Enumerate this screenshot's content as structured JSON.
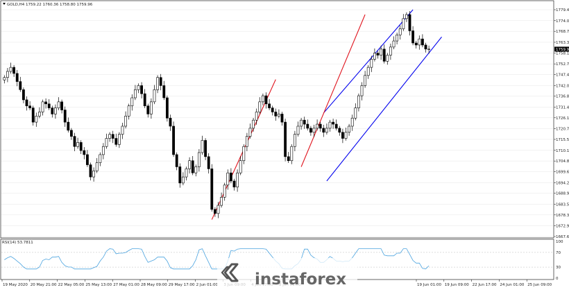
{
  "header": {
    "symbol_line": "GOLD,H4  1759.22 1760.36 1758.80 1759.96"
  },
  "logo": {
    "text": "instaforex"
  },
  "colors": {
    "bull": "#ffffff",
    "bear": "#000000",
    "grid": "#e6e6e6",
    "blue_channel": "#0000ee",
    "red_channel": "#e0141e",
    "rsi": "#4aa3df",
    "current_label": "#000000"
  },
  "chart_data": [
    {
      "type": "candlestick",
      "instrument": "GOLD",
      "timeframe": "H4",
      "ohlc_header": {
        "open": 1759.22,
        "high": 1760.36,
        "low": 1758.8,
        "close": 1759.96
      },
      "ylim": [
        1667.65,
        1779.4
      ],
      "y_ticks": [
        1779.4,
        1774.0,
        1768.75,
        1763.35,
        1758.1,
        1752.7,
        1747.45,
        1742.05,
        1736.8,
        1731.4,
        1726.15,
        1720.75,
        1715.5,
        1710.1,
        1704.85,
        1699.6,
        1694.2,
        1688.95,
        1683.55,
        1678.3,
        1672.9,
        1667.65
      ],
      "current_price": 1759.96,
      "x_labels": [
        "19 May 2020",
        "20 May 21:00",
        "22 May 05:00",
        "25 May 13:00",
        "27 May 01:00",
        "28 May 09:00",
        "29 May 17:00",
        "2 Jun 01:00",
        "3 Jun 09:00",
        "4 Jun 17:00",
        "8 Jun 01:00",
        "",
        "",
        "",
        "",
        "19 Jun 01:00",
        "19 Jun 09:00",
        "22 Jun 17:00",
        "24 Jun 01:00",
        "25 Jun 09:00"
      ],
      "closes": [
        1746,
        1749,
        1751,
        1748,
        1744,
        1740,
        1735,
        1732,
        1731,
        1724,
        1727,
        1729,
        1734,
        1733,
        1731,
        1728,
        1731,
        1734,
        1730,
        1724,
        1720,
        1717,
        1712,
        1714,
        1710,
        1708,
        1703,
        1697,
        1700,
        1704,
        1708,
        1712,
        1716,
        1718,
        1716,
        1713,
        1718,
        1722,
        1727,
        1732,
        1736,
        1740,
        1742,
        1738,
        1732,
        1728,
        1734,
        1740,
        1746,
        1742,
        1736,
        1726,
        1722,
        1708,
        1702,
        1694,
        1697,
        1701,
        1705,
        1699,
        1702,
        1709,
        1715,
        1707,
        1701,
        1681,
        1679,
        1683,
        1687,
        1693,
        1699,
        1695,
        1692,
        1699,
        1705,
        1712,
        1717,
        1721,
        1725,
        1729,
        1734,
        1737,
        1733,
        1731,
        1729,
        1727,
        1728,
        1724,
        1707,
        1705,
        1712,
        1718,
        1722,
        1725,
        1723,
        1721,
        1719,
        1721,
        1723,
        1721,
        1719,
        1721,
        1724,
        1723,
        1721,
        1719,
        1716,
        1719,
        1722,
        1726,
        1731,
        1737,
        1742,
        1747,
        1751,
        1755,
        1758,
        1757,
        1760,
        1754,
        1757,
        1761,
        1764,
        1767,
        1770,
        1775,
        1777,
        1769,
        1763,
        1762,
        1765,
        1762,
        1760,
        1760
      ],
      "rsi": {
        "label": "RSI(14) 53.7811",
        "ylim": [
          0,
          100
        ],
        "levels": [
          70,
          30
        ],
        "tick_labels": [
          "100",
          "70",
          "30",
          "0"
        ]
      },
      "annotations": [
        {
          "type": "channel",
          "color": "blue",
          "line1": [
            [
              1728.5,
              100
            ],
            [
              1779.4,
              128
            ]
          ],
          "line2": [
            [
              1695,
              101
            ],
            [
              1766,
              137
            ]
          ]
        },
        {
          "type": "trendline",
          "color": "red",
          "points": [
            [
              1676,
              65
            ],
            [
              1745,
              85
            ]
          ]
        },
        {
          "type": "trendline",
          "color": "red",
          "points": [
            [
              1702,
              93
            ],
            [
              1777,
              113
            ]
          ]
        }
      ]
    }
  ]
}
